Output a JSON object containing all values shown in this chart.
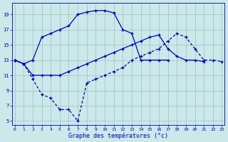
{
  "xlabel": "Graphe des températures (°c)",
  "bg_color": "#cce8e8",
  "line_color": "#0000bb",
  "grid_color": "#99cccc",
  "line1_x": [
    0,
    1,
    2,
    3,
    4,
    5,
    6,
    7,
    8,
    9,
    10,
    11,
    12,
    13,
    14,
    15,
    16,
    17,
    18,
    19,
    20,
    21,
    22,
    23
  ],
  "line1_y": [
    13,
    12.5,
    13,
    16,
    16.5,
    17,
    17.5,
    19,
    19.3,
    19.5,
    19.5,
    19.2,
    17,
    16.5,
    13,
    13,
    13,
    13,
    null,
    null,
    null,
    null,
    null,
    null
  ],
  "line2_x": [
    0,
    1,
    2,
    3,
    4,
    5,
    6,
    7,
    8,
    9,
    10,
    11,
    12,
    13,
    14,
    15,
    16,
    17,
    18,
    19,
    20,
    21,
    22,
    23
  ],
  "line2_y": [
    13,
    12.5,
    11,
    11,
    11,
    11,
    11.5,
    12,
    12.5,
    13,
    13.5,
    14,
    14.5,
    15,
    15.5,
    16,
    16.3,
    14.5,
    13.5,
    13,
    13,
    12.8,
    null,
    null
  ],
  "line3_x": [
    0,
    1,
    2,
    3,
    4,
    5,
    6,
    7,
    8,
    9,
    10,
    11,
    12,
    13,
    14,
    15,
    16,
    17,
    18,
    19,
    20,
    21,
    22,
    23
  ],
  "line3_y": [
    13,
    12.5,
    10.5,
    8.5,
    8.0,
    6.5,
    6.5,
    5.0,
    10.0,
    10.5,
    11,
    11.5,
    12,
    13,
    13.5,
    14,
    14.5,
    15.5,
    16.5,
    16,
    14.5,
    13,
    13,
    12.8
  ],
  "yticks": [
    5,
    7,
    9,
    11,
    13,
    15,
    17,
    19
  ],
  "xticks": [
    0,
    1,
    2,
    3,
    4,
    5,
    6,
    7,
    8,
    9,
    10,
    11,
    12,
    13,
    14,
    15,
    16,
    17,
    18,
    19,
    20,
    21,
    22,
    23
  ],
  "xlim": [
    -0.3,
    23.3
  ],
  "ylim": [
    4.5,
    20.5
  ]
}
